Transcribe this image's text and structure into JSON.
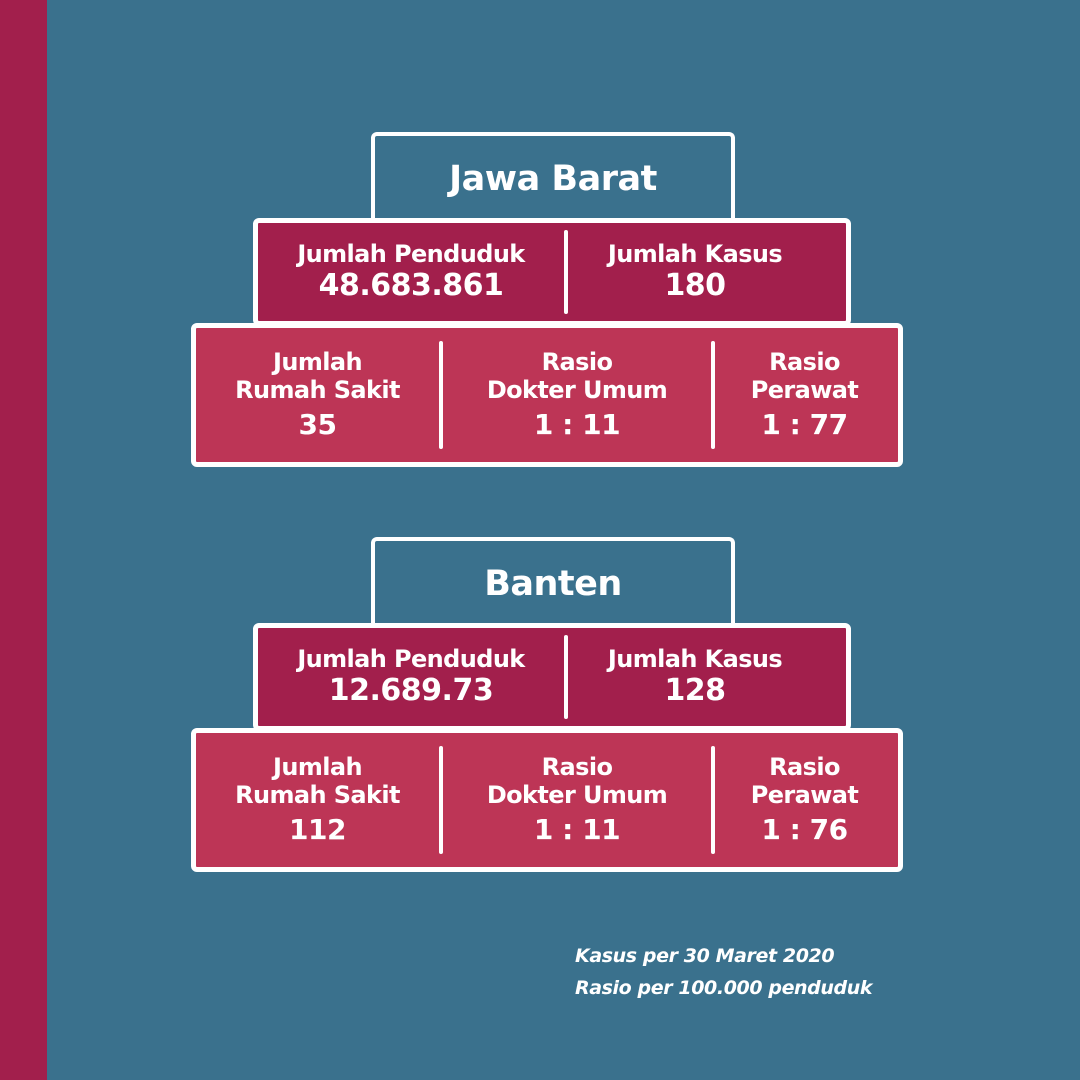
{
  "regions": [
    {
      "name": "Jawa Barat",
      "jumlah_penduduk_label": "Jumlah Penduduk",
      "jumlah_penduduk": "48.683.861",
      "jumlah_kasus_label": "Jumlah Kasus",
      "jumlah_kasus": "180",
      "rumah_sakit_label_1": "Jumlah",
      "rumah_sakit_label_2": "Rumah Sakit",
      "rumah_sakit": "35",
      "dokter_label_1": "Rasio",
      "dokter_label_2": "Dokter Umum",
      "dokter": "1 : 11",
      "perawat_label_1": "Rasio",
      "perawat_label_2": "Perawat",
      "perawat": "1 : 77"
    },
    {
      "name": "Banten",
      "jumlah_penduduk_label": "Jumlah Penduduk",
      "jumlah_penduduk": "12.689.73",
      "jumlah_kasus_label": "Jumlah Kasus",
      "jumlah_kasus": "128",
      "rumah_sakit_label_1": "Jumlah",
      "rumah_sakit_label_2": "Rumah Sakit",
      "rumah_sakit": "112",
      "dokter_label_1": "Rasio",
      "dokter_label_2": "Dokter Umum",
      "dokter": "1 : 11",
      "perawat_label_1": "Rasio",
      "perawat_label_2": "Perawat",
      "perawat": "1 : 76"
    }
  ],
  "footnote": {
    "line1": "Kasus per 30 Maret 2020",
    "line2": "Rasio per 100.000 penduduk"
  }
}
